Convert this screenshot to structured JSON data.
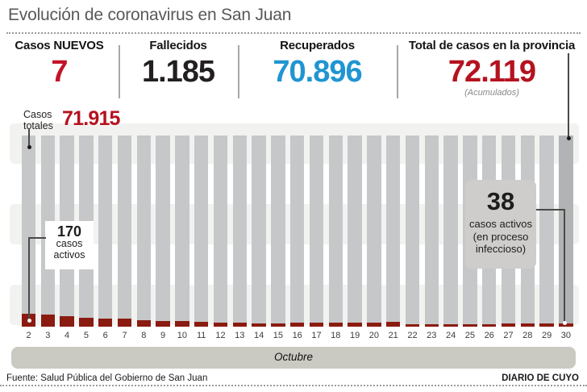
{
  "title": "Evolución de coronavirus en San Juan",
  "stats": [
    {
      "label": "Casos NUEVOS",
      "value": "7"
    },
    {
      "label": "Fallecidos",
      "value": "1.185"
    },
    {
      "label": "Recuperados",
      "value": "70.896"
    },
    {
      "label": "Total de casos en la provincia",
      "value": "72.119",
      "sub": "(Acumulados)"
    }
  ],
  "colors": {
    "new_cases": "#c31428",
    "deaths": "#231f20",
    "recovered": "#2095d2",
    "total": "#b5121f",
    "total_bars": "#c6c7c9",
    "last_bar": "#b2b3b5",
    "active_bars": "#8a1b10"
  },
  "chart_data": {
    "type": "bar",
    "title": "Evolución de coronavirus en San Juan",
    "categories": [
      2,
      3,
      4,
      5,
      6,
      7,
      8,
      9,
      10,
      11,
      12,
      13,
      14,
      15,
      16,
      17,
      18,
      19,
      20,
      21,
      22,
      23,
      24,
      25,
      26,
      27,
      28,
      29,
      30
    ],
    "month": "Octubre",
    "series": [
      {
        "name": "Casos totales",
        "labeled_values": {
          "day_2": 71915,
          "day_30": 72119
        },
        "note": "bars drawn at uniform full height; only first and last values labeled"
      },
      {
        "name": "Casos activos",
        "values": [
          170,
          152,
          139,
          114,
          104,
          104,
          87,
          70,
          70,
          59,
          52,
          52,
          46,
          46,
          49,
          49,
          49,
          52,
          55,
          59,
          34,
          34,
          31,
          28,
          34,
          38,
          38,
          38,
          38
        ],
        "labeled_values": {
          "day_2": 170,
          "day_30": 38
        },
        "note": "intermediate values estimated from bar heights"
      }
    ],
    "legend_position": "annotations",
    "grid": "horizontal light bands"
  },
  "chart_labels": {
    "casos_totales_line1": "Casos",
    "casos_totales_line2": "totales",
    "casos_totales_value": "71.915",
    "active_start_value": "170",
    "active_start_line1": "casos",
    "active_start_line2": "activos",
    "active_end_value": "38",
    "active_end_line1": "casos activos",
    "active_end_line2": "(en proceso",
    "active_end_line3": "infeccioso)",
    "month": "Octubre"
  },
  "footer": {
    "source": "Fuente: Salud Pública del Gobierno de San Juan",
    "credit": "DIARIO DE CUYO"
  }
}
